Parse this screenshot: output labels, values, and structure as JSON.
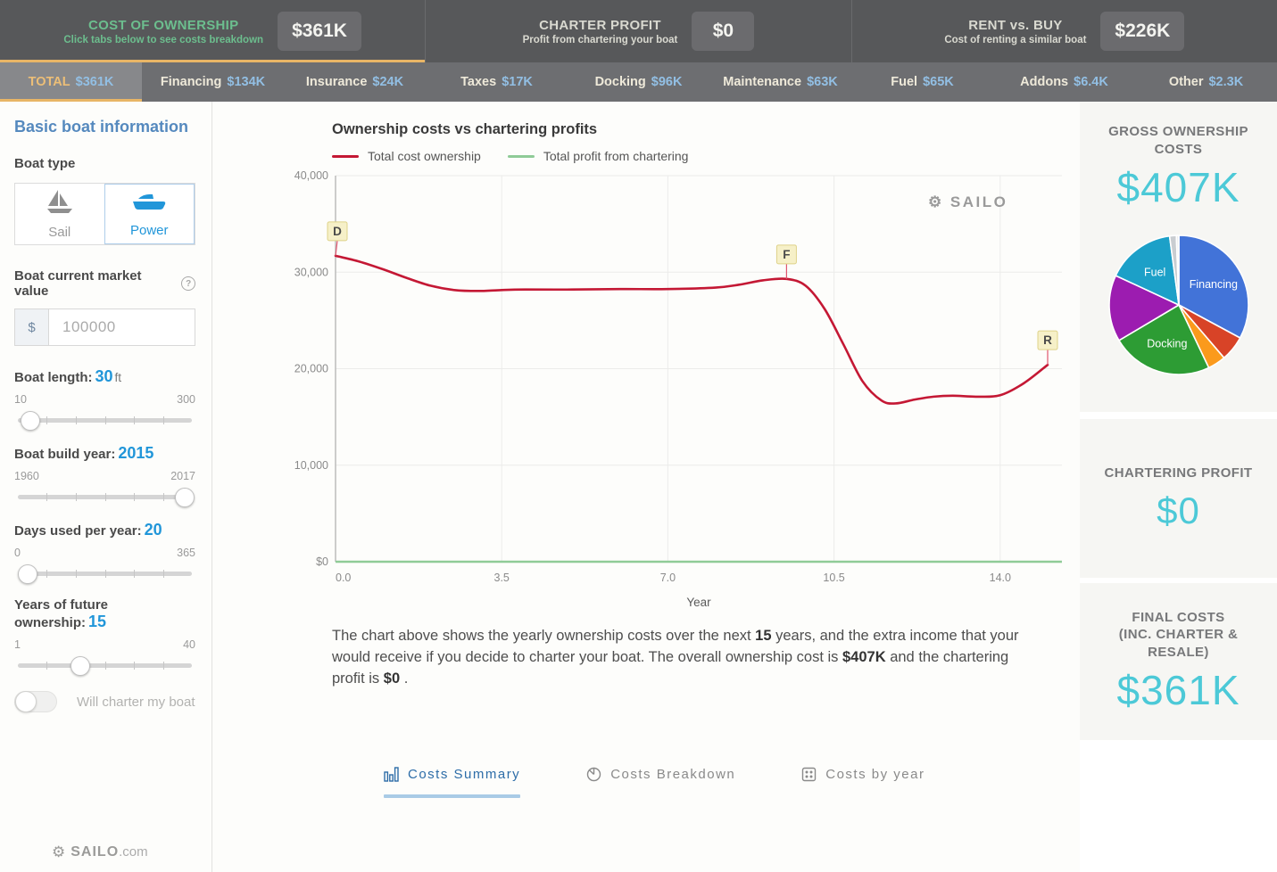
{
  "header": {
    "sections": [
      {
        "title": "COST OF OWNERSHIP",
        "subtitle": "Click tabs below to see costs breakdown",
        "value": "$361K",
        "active": true
      },
      {
        "title": "CHARTER PROFIT",
        "subtitle": "Profit from chartering your boat",
        "value": "$0",
        "active": false
      },
      {
        "title": "RENT vs. BUY",
        "subtitle": "Cost of renting a similar boat",
        "value": "$226K",
        "active": false
      }
    ]
  },
  "cost_tabs": {
    "active_index": 0,
    "tabs": [
      {
        "label": "TOTAL",
        "value": "$361K"
      },
      {
        "label": "Financing",
        "value": "$134K"
      },
      {
        "label": "Insurance",
        "value": "$24K"
      },
      {
        "label": "Taxes",
        "value": "$17K"
      },
      {
        "label": "Docking",
        "value": "$96K"
      },
      {
        "label": "Maintenance",
        "value": "$63K"
      },
      {
        "label": "Fuel",
        "value": "$65K"
      },
      {
        "label": "Addons",
        "value": "$6.4K"
      },
      {
        "label": "Other",
        "value": "$2.3K"
      }
    ]
  },
  "sidebar": {
    "heading": "Basic boat information",
    "boat_type": {
      "label": "Boat type",
      "options": [
        {
          "label": "Sail",
          "selected": false
        },
        {
          "label": "Power",
          "selected": true
        }
      ]
    },
    "market_value": {
      "label": "Boat current market value",
      "currency": "$",
      "value": "100000"
    },
    "sliders": [
      {
        "label": "Boat length:",
        "value": "30",
        "unit": "ft",
        "min": "10",
        "max": "300",
        "percent": 7
      },
      {
        "label": "Boat build year:",
        "value": "2015",
        "unit": "",
        "min": "1960",
        "max": "2017",
        "percent": 96
      },
      {
        "label": "Days used per year:",
        "value": "20",
        "unit": "",
        "min": "0",
        "max": "365",
        "percent": 5.5
      },
      {
        "label": "Years of future ownership:",
        "value": "15",
        "unit": "",
        "min": "1",
        "max": "40",
        "percent": 36
      }
    ],
    "charter_toggle": {
      "label": "Will charter my boat",
      "on": false
    }
  },
  "main": {
    "chart_title": "Ownership costs vs chartering profits",
    "legend": [
      {
        "label": "Total cost ownership",
        "color": "#c41834"
      },
      {
        "label": "Total profit from chartering",
        "color": "#8fcb97"
      }
    ],
    "watermark": "SAILO",
    "description_segments": [
      {
        "text": "The chart above shows the yearly ownership costs over the next ",
        "bold": false
      },
      {
        "text": "15",
        "bold": true
      },
      {
        "text": " years, and the extra income that your would receive if you decide to charter your boat. The overall ownership cost is ",
        "bold": false
      },
      {
        "text": "$407K",
        "bold": true
      },
      {
        "text": " and the chartering profit is ",
        "bold": false
      },
      {
        "text": "$0",
        "bold": true
      },
      {
        "text": " .",
        "bold": false
      }
    ],
    "bottom_tabs": {
      "active_index": 0,
      "tabs": [
        {
          "label": "Costs Summary",
          "icon": "bar-chart-icon"
        },
        {
          "label": "Costs Breakdown",
          "icon": "pie-chart-icon"
        },
        {
          "label": "Costs by year",
          "icon": "table-icon"
        }
      ]
    }
  },
  "chart_data": {
    "type": "line",
    "title": "Ownership costs vs chartering profits",
    "xlabel": "Year",
    "ylabel": "",
    "xlim": [
      0,
      15.3
    ],
    "ylim": [
      0,
      40000
    ],
    "xticks": [
      0,
      3.5,
      7,
      10.5,
      14
    ],
    "xtick_labels": [
      "0.0",
      "3.5",
      "7.0",
      "10.5",
      "14.0"
    ],
    "yticks": [
      0,
      10000,
      20000,
      30000,
      40000
    ],
    "ytick_labels": [
      "$0",
      "$10,000",
      "$20,000",
      "$30,000",
      "$40,000"
    ],
    "legend_position": "top-left",
    "grid": true,
    "series": [
      {
        "name": "Total cost ownership",
        "color": "#c41834",
        "points": [
          [
            0,
            31700
          ],
          [
            0.5,
            31100
          ],
          [
            1,
            30300
          ],
          [
            1.5,
            29400
          ],
          [
            2,
            28600
          ],
          [
            2.5,
            28150
          ],
          [
            3,
            28050
          ],
          [
            3.5,
            28150
          ],
          [
            4,
            28200
          ],
          [
            5,
            28200
          ],
          [
            6,
            28250
          ],
          [
            7,
            28250
          ],
          [
            8,
            28400
          ],
          [
            8.5,
            28700
          ],
          [
            9,
            29150
          ],
          [
            9.5,
            29300
          ],
          [
            9.9,
            28600
          ],
          [
            10.3,
            26200
          ],
          [
            10.7,
            22500
          ],
          [
            11.1,
            18700
          ],
          [
            11.5,
            16700
          ],
          [
            11.8,
            16400
          ],
          [
            12.2,
            16800
          ],
          [
            12.6,
            17100
          ],
          [
            13,
            17200
          ],
          [
            13.5,
            17100
          ],
          [
            14,
            17250
          ],
          [
            14.5,
            18500
          ],
          [
            15,
            20400
          ]
        ]
      },
      {
        "name": "Total profit from chartering",
        "color": "#8fcb97",
        "points": [
          [
            0,
            0
          ],
          [
            15.3,
            0
          ]
        ]
      }
    ],
    "markers": [
      {
        "label": "D",
        "x": 0,
        "y": 31700
      },
      {
        "label": "F",
        "x": 9.5,
        "y": 29300
      },
      {
        "label": "R",
        "x": 15,
        "y": 20400
      }
    ]
  },
  "right_panel": {
    "gross": {
      "title": "GROSS OWNERSHIP COSTS",
      "value": "$407K"
    },
    "pie": {
      "slices": [
        {
          "label": "Financing",
          "value": 134,
          "color": "#4273d8",
          "show_label": true
        },
        {
          "label": "Insurance",
          "value": 24,
          "color": "#d84327",
          "show_label": false
        },
        {
          "label": "Taxes",
          "value": 17,
          "color": "#fb9a1c",
          "show_label": false
        },
        {
          "label": "Docking",
          "value": 96,
          "color": "#2d9c34",
          "show_label": true
        },
        {
          "label": "Maintenance",
          "value": 63,
          "color": "#9c1cb0",
          "show_label": false
        },
        {
          "label": "Fuel",
          "value": 65,
          "color": "#1ca0c8",
          "show_label": true
        },
        {
          "label": "Addons",
          "value": 6.4,
          "color": "#c9cdd1",
          "show_label": false
        },
        {
          "label": "Other",
          "value": 2.3,
          "color": "#e9ebec",
          "show_label": false
        }
      ]
    },
    "chartering": {
      "title": "CHARTERING PROFIT",
      "value": "$0"
    },
    "final": {
      "title_line1": "FINAL COSTS",
      "title_line2": "(INC. CHARTER & RESALE)",
      "value": "$361K"
    }
  },
  "footer": {
    "wheel_icon": "⚙",
    "brand": "SAILO",
    "suffix": ".com"
  },
  "colors": {
    "accent_orange": "#e8b566",
    "accent_cyan": "#4cc9d7",
    "accent_blue": "#2196d9",
    "value_blue": "#92bfe4",
    "header_green": "#6cbe8e",
    "line_red": "#c41834",
    "line_green": "#8fcb97"
  }
}
